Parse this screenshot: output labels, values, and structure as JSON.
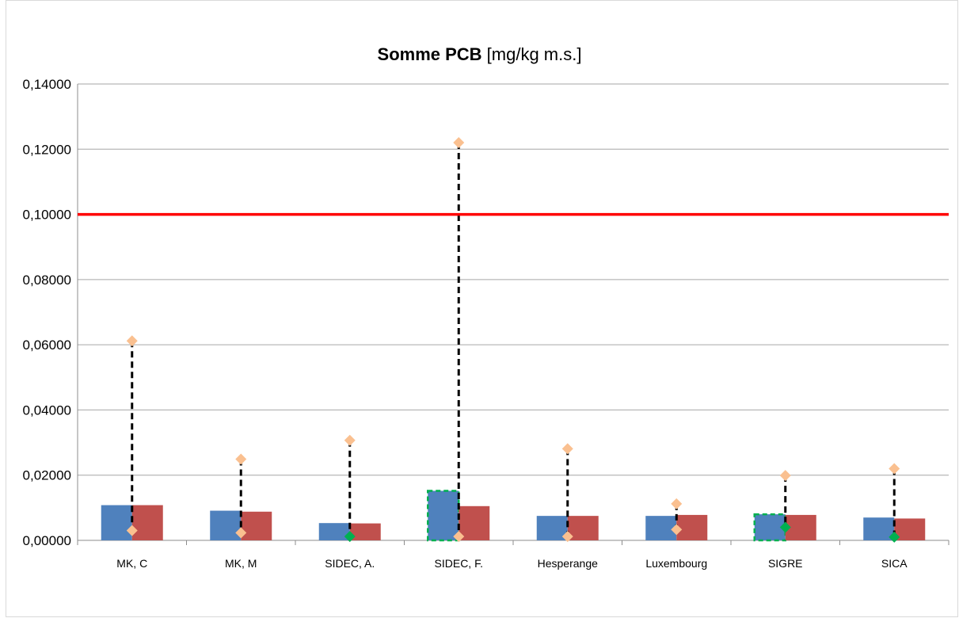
{
  "chart_data": {
    "type": "bar",
    "title_bold": "Somme PCB",
    "title_rest": " [mg/kg m.s.]",
    "xlabel": "",
    "ylabel": "",
    "ylim": [
      0,
      0.14
    ],
    "y_ticks": [
      "0,00000",
      "0,02000",
      "0,04000",
      "0,06000",
      "0,08000",
      "0,10000",
      "0,12000",
      "0,14000"
    ],
    "y_tick_values": [
      0,
      0.02,
      0.04,
      0.06,
      0.08,
      0.1,
      0.12,
      0.14
    ],
    "grid": true,
    "categories": [
      "MK, C",
      "MK, M",
      "SIDEC, A.",
      "SIDEC, F.",
      "Hesperange",
      "Luxembourg",
      "SIGRE",
      "SICA"
    ],
    "series": [
      {
        "values": [
          0.0108,
          0.0091,
          0.0053,
          0.0152,
          0.0075,
          0.0075,
          0.008,
          0.007
        ],
        "color": "#4f81bd"
      },
      {
        "values": [
          0.0108,
          0.0088,
          0.0052,
          0.0105,
          0.0075,
          0.0078,
          0.0078,
          0.0067
        ],
        "color": "#c0504d"
      }
    ],
    "max_markers": [
      0.0612,
      0.0249,
      0.0307,
      0.122,
      0.0281,
      0.0112,
      0.0199,
      0.022
    ],
    "min_markers": [
      0.003,
      0.0023,
      0.0012,
      0.0012,
      0.0012,
      0.0033,
      0.004,
      0.001
    ],
    "min_marker_green": [
      false,
      false,
      true,
      false,
      false,
      false,
      true,
      true
    ],
    "highlighted_bars": [
      3,
      6
    ],
    "reference_line": {
      "value": 0.1,
      "color": "#ff0000"
    },
    "colors": {
      "marker": "#fac090",
      "green_marker": "#00b050",
      "highlight_border": "#00b050",
      "gridline": "#a6a6a6"
    }
  }
}
